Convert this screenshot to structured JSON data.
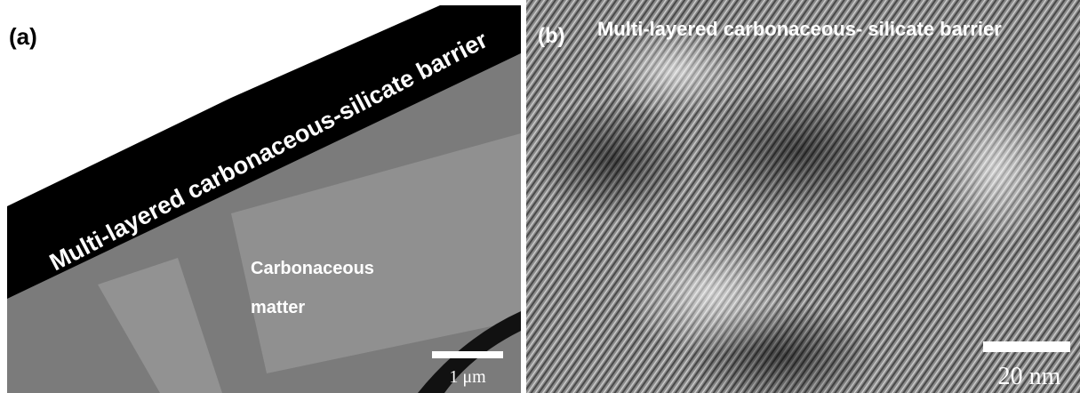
{
  "panels": [
    {
      "label": "(a)",
      "annotation": "Multi-layered carbonaceous-silicate barrier",
      "region_label": [
        "Carbonaceous",
        "matter"
      ],
      "scale_bar": "1 μm"
    },
    {
      "label": "(b)",
      "annotation": "Multi-layered carbonaceous- silicate barrier",
      "scale_bar": "20 nm"
    }
  ]
}
